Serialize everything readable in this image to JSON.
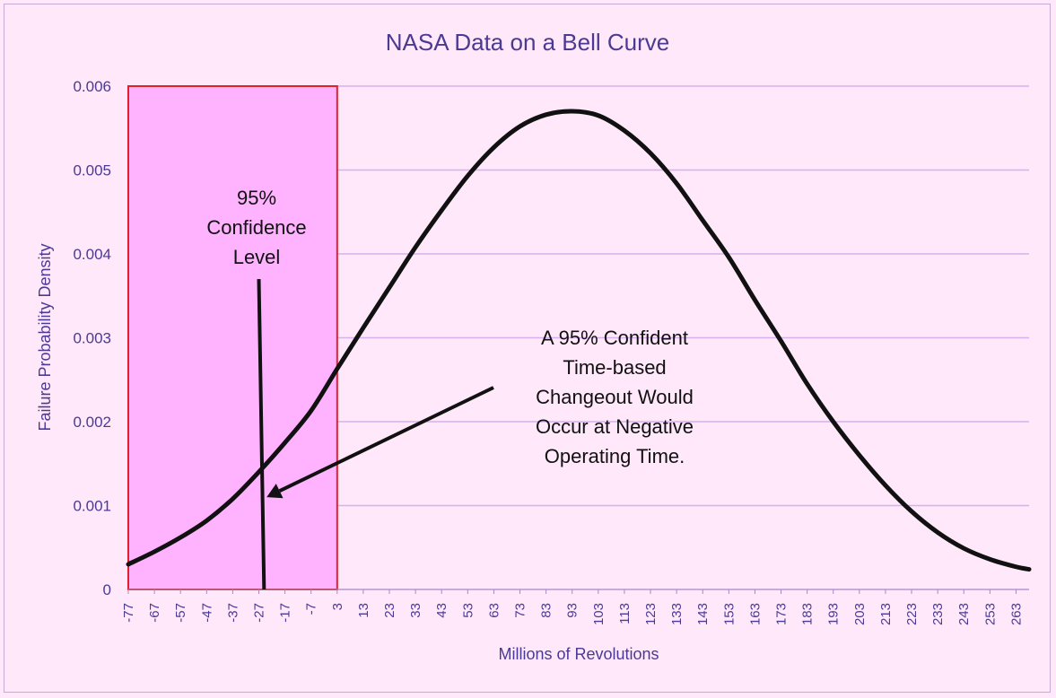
{
  "chart_data": {
    "type": "line",
    "title": "NASA Data on a Bell Curve",
    "xlabel": "Millions of Revolutions",
    "ylabel": "Failure Probability Density",
    "xlim": [
      -77,
      268
    ],
    "ylim": [
      0,
      0.006
    ],
    "y_ticks": [
      "0",
      "0.001",
      "0.002",
      "0.003",
      "0.004",
      "0.005",
      "0.006"
    ],
    "x_ticks": [
      "-77",
      "-67",
      "-57",
      "-47",
      "-37",
      "-27",
      "-17",
      "-7",
      "3",
      "13",
      "23",
      "33",
      "43",
      "53",
      "63",
      "73",
      "83",
      "93",
      "103",
      "113",
      "123",
      "133",
      "143",
      "153",
      "163",
      "173",
      "183",
      "193",
      "203",
      "213",
      "223",
      "233",
      "243",
      "253",
      "263"
    ],
    "grid": "horizontal",
    "series": [
      {
        "color": "#111111",
        "x": [
          -77,
          -67,
          -57,
          -47,
          -37,
          -27,
          -17,
          -7,
          3,
          13,
          23,
          33,
          43,
          53,
          63,
          73,
          83,
          93,
          103,
          113,
          123,
          133,
          143,
          153,
          163,
          173,
          183,
          193,
          203,
          213,
          223,
          233,
          243,
          253,
          263,
          268
        ],
        "y": [
          0.0003,
          0.00045,
          0.00062,
          0.00082,
          0.00108,
          0.0014,
          0.00175,
          0.00213,
          0.00263,
          0.00312,
          0.0036,
          0.00408,
          0.00452,
          0.00493,
          0.00527,
          0.00552,
          0.00566,
          0.0057,
          0.00565,
          0.00547,
          0.0052,
          0.00484,
          0.0044,
          0.00396,
          0.00345,
          0.00296,
          0.00245,
          0.002,
          0.0016,
          0.00124,
          0.00093,
          0.00068,
          0.00049,
          0.00036,
          0.00027,
          0.00024
        ]
      }
    ],
    "highlight_region": {
      "x_from": -77,
      "x_to": 3,
      "fill": "#ffb3ff",
      "stroke": "#e0202a"
    },
    "annotations": [
      {
        "lines": [
          "95%",
          "Confidence",
          "Level"
        ],
        "line_x": [
          -27,
          -25
        ],
        "line_y": [
          0.0037,
          0
        ]
      },
      {
        "lines": [
          "A 95% Confident",
          "Time-based",
          "Changeout Would",
          "Occur at Negative",
          "Operating Time."
        ],
        "arrow_to": {
          "x": -24,
          "y": 0.0011
        }
      }
    ],
    "colors": {
      "text": "#4b3a94",
      "grid": "#d6b0f0",
      "background": "#ffe8fa",
      "curve": "#111111"
    }
  }
}
